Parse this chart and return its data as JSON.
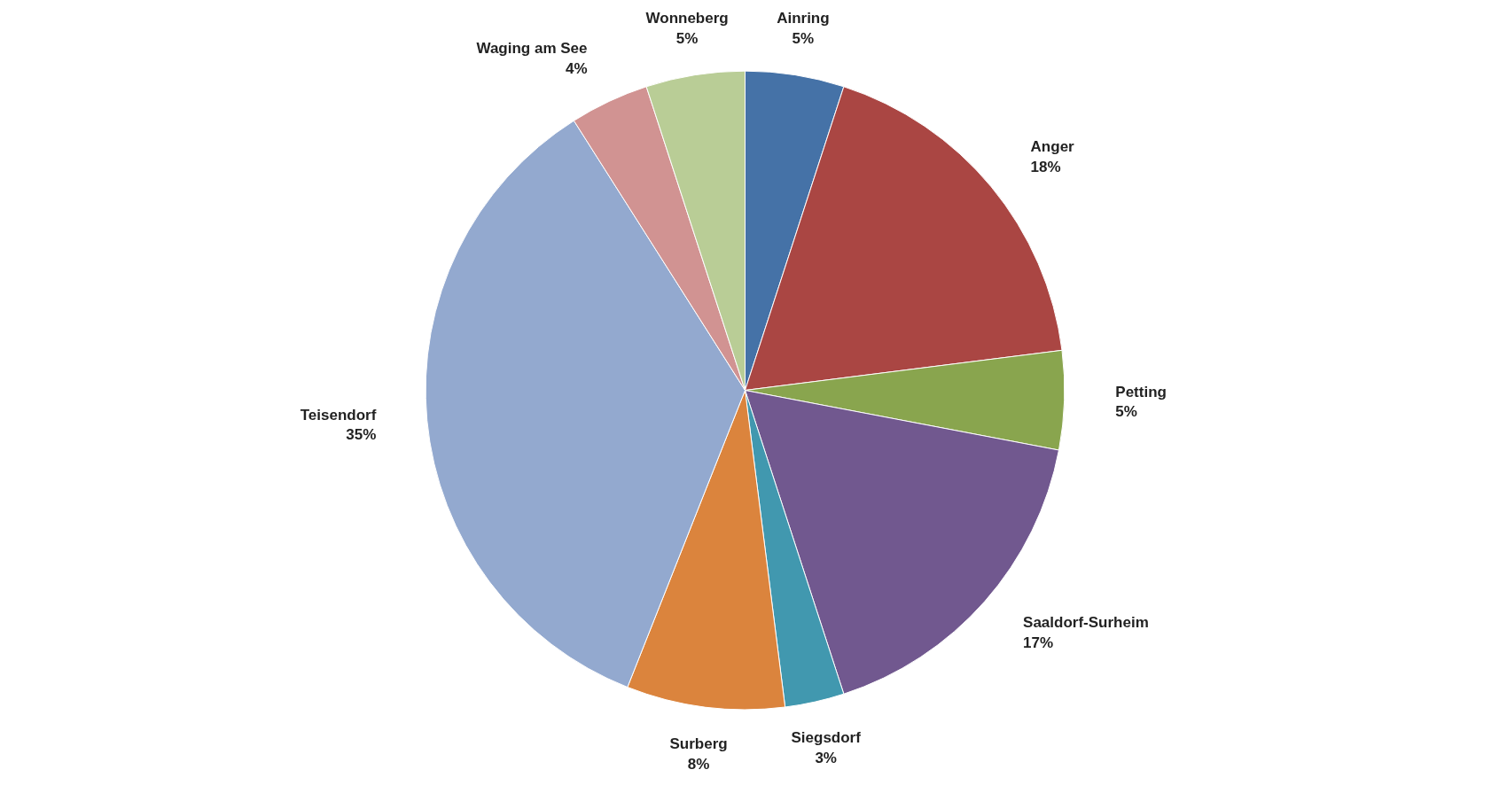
{
  "chart_data": {
    "type": "pie",
    "categories": [
      "Ainring",
      "Anger",
      "Petting",
      "Saaldorf-Surheim",
      "Siegsdorf",
      "Surberg",
      "Teisendorf",
      "Waging am See",
      "Wonneberg"
    ],
    "values": [
      5,
      18,
      5,
      17,
      3,
      8,
      35,
      4,
      5
    ],
    "value_labels": [
      "5%",
      "18%",
      "5%",
      "17%",
      "3%",
      "8%",
      "35%",
      "4%",
      "5%"
    ],
    "colors": [
      "#4572a7",
      "#aa4643",
      "#89a54e",
      "#71588f",
      "#4198af",
      "#db843d",
      "#93a9cf",
      "#d19392",
      "#b9cd96"
    ]
  }
}
